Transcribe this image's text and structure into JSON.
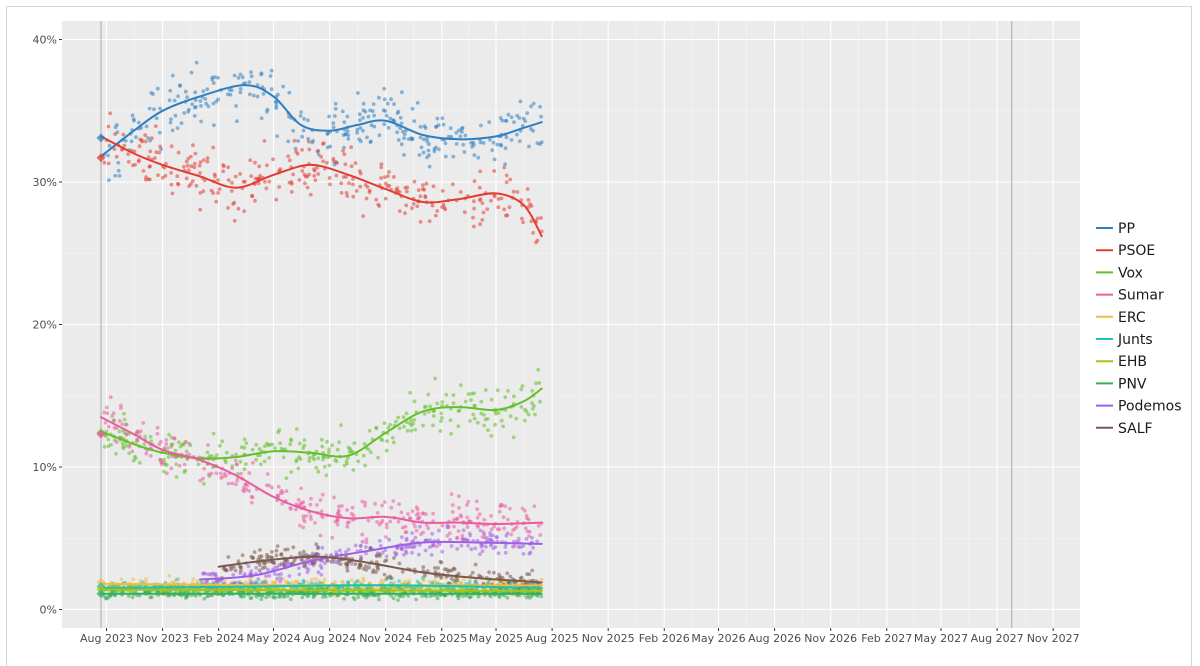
{
  "chart_data": {
    "type": "scatter",
    "title": "",
    "xlabel": "",
    "ylabel": "",
    "x_axis": {
      "type": "date",
      "range": [
        "2023-05-20",
        "2027-12-15"
      ],
      "ticks": [
        {
          "date": "2023-08-01",
          "label": "Aug 2023"
        },
        {
          "date": "2023-11-01",
          "label": "Nov 2023"
        },
        {
          "date": "2024-02-01",
          "label": "Feb 2024"
        },
        {
          "date": "2024-05-01",
          "label": "May 2024"
        },
        {
          "date": "2024-08-01",
          "label": "Aug 2024"
        },
        {
          "date": "2024-11-01",
          "label": "Nov 2024"
        },
        {
          "date": "2025-02-01",
          "label": "Feb 2025"
        },
        {
          "date": "2025-05-01",
          "label": "May 2025"
        },
        {
          "date": "2025-08-01",
          "label": "Aug 2025"
        },
        {
          "date": "2025-11-01",
          "label": "Nov 2025"
        },
        {
          "date": "2026-02-01",
          "label": "Feb 2026"
        },
        {
          "date": "2026-05-01",
          "label": "May 2026"
        },
        {
          "date": "2026-08-01",
          "label": "Aug 2026"
        },
        {
          "date": "2026-11-01",
          "label": "Nov 2026"
        },
        {
          "date": "2027-02-01",
          "label": "Feb 2027"
        },
        {
          "date": "2027-05-01",
          "label": "May 2027"
        },
        {
          "date": "2027-08-01",
          "label": "Aug 2027"
        },
        {
          "date": "2027-11-01",
          "label": "Nov 2027"
        }
      ],
      "reference_lines": [
        "2023-07-23",
        "2027-08-25"
      ]
    },
    "y_axis": {
      "range": [
        -1.3,
        41.3
      ],
      "ticks": [
        {
          "value": 0,
          "label": "0%"
        },
        {
          "value": 10,
          "label": "10%"
        },
        {
          "value": 20,
          "label": "20%"
        },
        {
          "value": 30,
          "label": "30%"
        },
        {
          "value": 40,
          "label": "40%"
        }
      ]
    },
    "grid": true,
    "legend_position": "right",
    "series": [
      {
        "name": "PP",
        "color": "#2f7fc1",
        "election": 33.1,
        "trend": [
          [
            "2023-07-23",
            31.8
          ],
          [
            "2023-09-15",
            33.6
          ],
          [
            "2023-11-01",
            35.0
          ],
          [
            "2024-01-01",
            36.0
          ],
          [
            "2024-03-15",
            36.8
          ],
          [
            "2024-05-01",
            36.0
          ],
          [
            "2024-06-15",
            34.0
          ],
          [
            "2024-08-01",
            33.6
          ],
          [
            "2024-09-15",
            34.0
          ],
          [
            "2024-11-01",
            34.3
          ],
          [
            "2025-01-01",
            33.3
          ],
          [
            "2025-03-01",
            33.0
          ],
          [
            "2025-05-01",
            33.2
          ],
          [
            "2025-06-15",
            33.8
          ],
          [
            "2025-07-15",
            34.2
          ]
        ],
        "spread": 1.4
      },
      {
        "name": "PSOE",
        "color": "#e33c33",
        "election": 31.7,
        "trend": [
          [
            "2023-07-23",
            33.2
          ],
          [
            "2023-09-15",
            32.0
          ],
          [
            "2023-11-01",
            31.2
          ],
          [
            "2024-01-01",
            30.4
          ],
          [
            "2024-03-01",
            29.6
          ],
          [
            "2024-05-01",
            30.5
          ],
          [
            "2024-07-01",
            31.2
          ],
          [
            "2024-09-01",
            30.5
          ],
          [
            "2024-11-01",
            29.5
          ],
          [
            "2025-01-01",
            28.6
          ],
          [
            "2025-03-01",
            28.8
          ],
          [
            "2025-05-01",
            29.2
          ],
          [
            "2025-06-15",
            28.4
          ],
          [
            "2025-07-15",
            26.2
          ]
        ],
        "spread": 1.4
      },
      {
        "name": "Vox",
        "color": "#63bf2a",
        "election": 12.4,
        "trend": [
          [
            "2023-07-23",
            12.5
          ],
          [
            "2023-09-15",
            11.6
          ],
          [
            "2023-11-01",
            11.0
          ],
          [
            "2024-01-01",
            10.6
          ],
          [
            "2024-03-01",
            10.7
          ],
          [
            "2024-05-01",
            11.1
          ],
          [
            "2024-07-01",
            11.0
          ],
          [
            "2024-09-01",
            10.8
          ],
          [
            "2024-11-01",
            12.4
          ],
          [
            "2025-01-01",
            13.9
          ],
          [
            "2025-03-01",
            14.2
          ],
          [
            "2025-05-01",
            14.0
          ],
          [
            "2025-06-15",
            14.6
          ],
          [
            "2025-07-15",
            15.5
          ]
        ],
        "spread": 1.1
      },
      {
        "name": "Sumar",
        "color": "#ea5ba0",
        "election": 12.3,
        "trend": [
          [
            "2023-07-23",
            13.5
          ],
          [
            "2023-09-15",
            12.3
          ],
          [
            "2023-11-01",
            11.2
          ],
          [
            "2024-01-01",
            10.5
          ],
          [
            "2024-03-01",
            9.4
          ],
          [
            "2024-05-01",
            7.9
          ],
          [
            "2024-07-01",
            6.9
          ],
          [
            "2024-09-01",
            6.4
          ],
          [
            "2024-11-01",
            6.5
          ],
          [
            "2025-01-01",
            6.1
          ],
          [
            "2025-03-01",
            6.1
          ],
          [
            "2025-05-01",
            6.0
          ],
          [
            "2025-07-15",
            6.1
          ]
        ],
        "spread": 1.0
      },
      {
        "name": "ERC",
        "color": "#f5b944",
        "election": 1.9,
        "trend": [
          [
            "2023-07-23",
            1.8
          ],
          [
            "2024-06-01",
            1.7
          ],
          [
            "2025-07-15",
            1.7
          ]
        ],
        "spread": 0.35
      },
      {
        "name": "Junts",
        "color": "#19c3b0",
        "election": 1.6,
        "trend": [
          [
            "2023-07-23",
            1.5
          ],
          [
            "2024-03-01",
            1.6
          ],
          [
            "2024-11-01",
            1.7
          ],
          [
            "2025-07-15",
            1.5
          ]
        ],
        "spread": 0.3
      },
      {
        "name": "EHB",
        "color": "#a3c51a",
        "election": 1.4,
        "trend": [
          [
            "2023-07-23",
            1.4
          ],
          [
            "2025-07-15",
            1.3
          ]
        ],
        "spread": 0.25
      },
      {
        "name": "PNV",
        "color": "#35b05a",
        "election": 1.1,
        "trend": [
          [
            "2023-07-23",
            1.1
          ],
          [
            "2025-07-15",
            1.1
          ]
        ],
        "spread": 0.25
      },
      {
        "name": "Podemos",
        "color": "#9e5fe6",
        "election": null,
        "trend": [
          [
            "2024-01-01",
            2.1
          ],
          [
            "2024-04-01",
            2.4
          ],
          [
            "2024-07-01",
            3.4
          ],
          [
            "2024-10-01",
            4.1
          ],
          [
            "2025-01-01",
            4.7
          ],
          [
            "2025-04-01",
            4.7
          ],
          [
            "2025-07-15",
            4.6
          ]
        ],
        "spread": 0.6
      },
      {
        "name": "SALF",
        "color": "#7a5a4a",
        "election": null,
        "trend": [
          [
            "2024-02-01",
            3.0
          ],
          [
            "2024-05-01",
            3.5
          ],
          [
            "2024-07-15",
            3.7
          ],
          [
            "2024-10-01",
            3.3
          ],
          [
            "2025-01-01",
            2.6
          ],
          [
            "2025-04-01",
            2.2
          ],
          [
            "2025-07-15",
            1.9
          ]
        ],
        "spread": 0.6
      }
    ]
  }
}
